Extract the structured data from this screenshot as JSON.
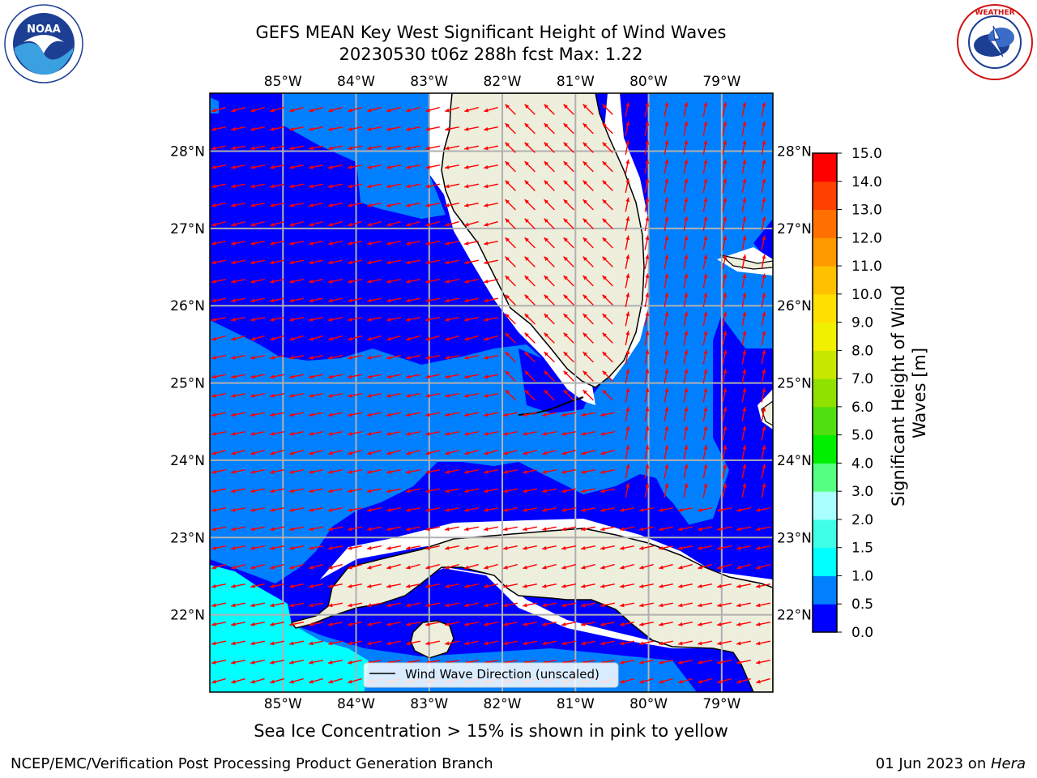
{
  "title_line1": "GEFS MEAN Key West Significant Height of Wind Waves",
  "title_line2": "20230530 t06z 288h fcst   Max: 1.22",
  "logos": {
    "noaa_text": "NOAA",
    "noaa_ring_text": "NATIONAL OCEANIC AND ATMOSPHERIC ADMINISTRATION · U.S. DEPARTMENT OF COMMERCE",
    "nws_ring_text": "NATIONAL WEATHER SERVICE"
  },
  "legend_label": "Wind Wave Direction (unscaled)",
  "sea_ice_note": "Sea Ice Concentration > 15% is shown in pink to yellow",
  "footer_left": "NCEP/EMC/Verification Post Processing Product Generation Branch",
  "footer_right_date": "01 Jun 2023 on ",
  "footer_right_machine": "Hera",
  "colors": {
    "land": "#eeeedd",
    "ocean_0_05": "#0000ff",
    "ocean_05_1": "#0080ff",
    "ocean_1_15": "#00ffff",
    "arrow": "#ff0000",
    "grid": "#b0b0b0"
  },
  "chart_data": {
    "type": "heatmap",
    "title": "GEFS MEAN Key West Significant Height of Wind Waves",
    "subtitle": "20230530 t06z 288h fcst   Max: 1.22",
    "max_value": 1.22,
    "x_axis": {
      "label": "",
      "ticks": [
        "85°W",
        "84°W",
        "83°W",
        "82°W",
        "81°W",
        "80°W",
        "79°W"
      ],
      "values": [
        -85,
        -84,
        -83,
        -82,
        -81,
        -80,
        -79
      ],
      "range": [
        -86,
        -78.3
      ]
    },
    "y_axis": {
      "label": "",
      "ticks": [
        "22°N",
        "23°N",
        "24°N",
        "25°N",
        "26°N",
        "27°N",
        "28°N"
      ],
      "values": [
        22,
        23,
        24,
        25,
        26,
        27,
        28
      ],
      "range": [
        21,
        28.75
      ]
    },
    "grid": true,
    "colorbar": {
      "label": "Significant Height of Wind Waves [m]",
      "levels": [
        0.0,
        0.5,
        1.0,
        1.5,
        2.0,
        3.0,
        4.0,
        5.0,
        6.0,
        7.0,
        8.0,
        9.0,
        10.0,
        11.0,
        12.0,
        13.0,
        14.0,
        15.0
      ],
      "tick_labels": [
        "0.0",
        "0.5",
        "1.0",
        "1.5",
        "2.0",
        "3.0",
        "4.0",
        "5.0",
        "6.0",
        "7.0",
        "8.0",
        "9.0",
        "10.0",
        "11.0",
        "12.0",
        "13.0",
        "14.0",
        "15.0"
      ],
      "colors": [
        "#0000ff",
        "#0080ff",
        "#00ffff",
        "#40ffe8",
        "#aaffff",
        "#55ff80",
        "#00ee00",
        "#50e010",
        "#90e000",
        "#c8e800",
        "#f0f000",
        "#ffe000",
        "#ffc000",
        "#ff9900",
        "#ff7000",
        "#ff4000",
        "#ff0000"
      ]
    },
    "legend": {
      "entries": [
        "Wind Wave Direction (unscaled)"
      ],
      "placement": "bottom-center"
    },
    "regions": [
      {
        "area": "Gulf of Mexico west of Florida",
        "range_m": "0.0-0.5"
      },
      {
        "area": "Straits of Florida / Florida Keys",
        "range_m": "0.5-1.0"
      },
      {
        "area": "Atlantic east of Florida",
        "range_m": "0.5-1.0"
      },
      {
        "area": "Yucatan Channel (southwest)",
        "range_m": "1.0-1.5"
      }
    ],
    "wave_direction": {
      "dominant": "toward west-southwest / west",
      "east_of_florida": "toward north"
    }
  }
}
